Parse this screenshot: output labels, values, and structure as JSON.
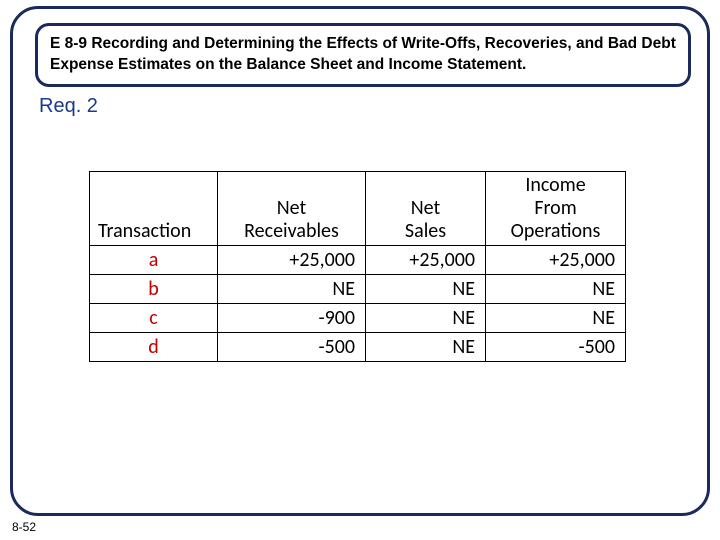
{
  "title": "E 8-9 Recording and Determining the Effects of Write-Offs, Recoveries, and Bad Debt Expense Estimates on the Balance Sheet and Income Statement.",
  "req_label": "Req. 2",
  "page_number": "8-52",
  "table": {
    "headers": {
      "transaction": "Transaction",
      "receivables": "Net\nReceivables",
      "sales": "Net\nSales",
      "income": "Income\nFrom\nOperations"
    },
    "rows": [
      {
        "t": "a",
        "r": "+25,000",
        "s": "+25,000",
        "i": "+25,000"
      },
      {
        "t": "b",
        "r": "NE",
        "s": "NE",
        "i": "NE"
      },
      {
        "t": "c",
        "r": "-900",
        "s": "NE",
        "i": "NE"
      },
      {
        "t": "d",
        "r": "-500",
        "s": "NE",
        "i": "-500"
      }
    ]
  },
  "colors": {
    "frame_border": "#1a2a5a",
    "req_text": "#1a3a8a",
    "row_label": "#c00000",
    "text": "#000000",
    "background": "#ffffff"
  }
}
